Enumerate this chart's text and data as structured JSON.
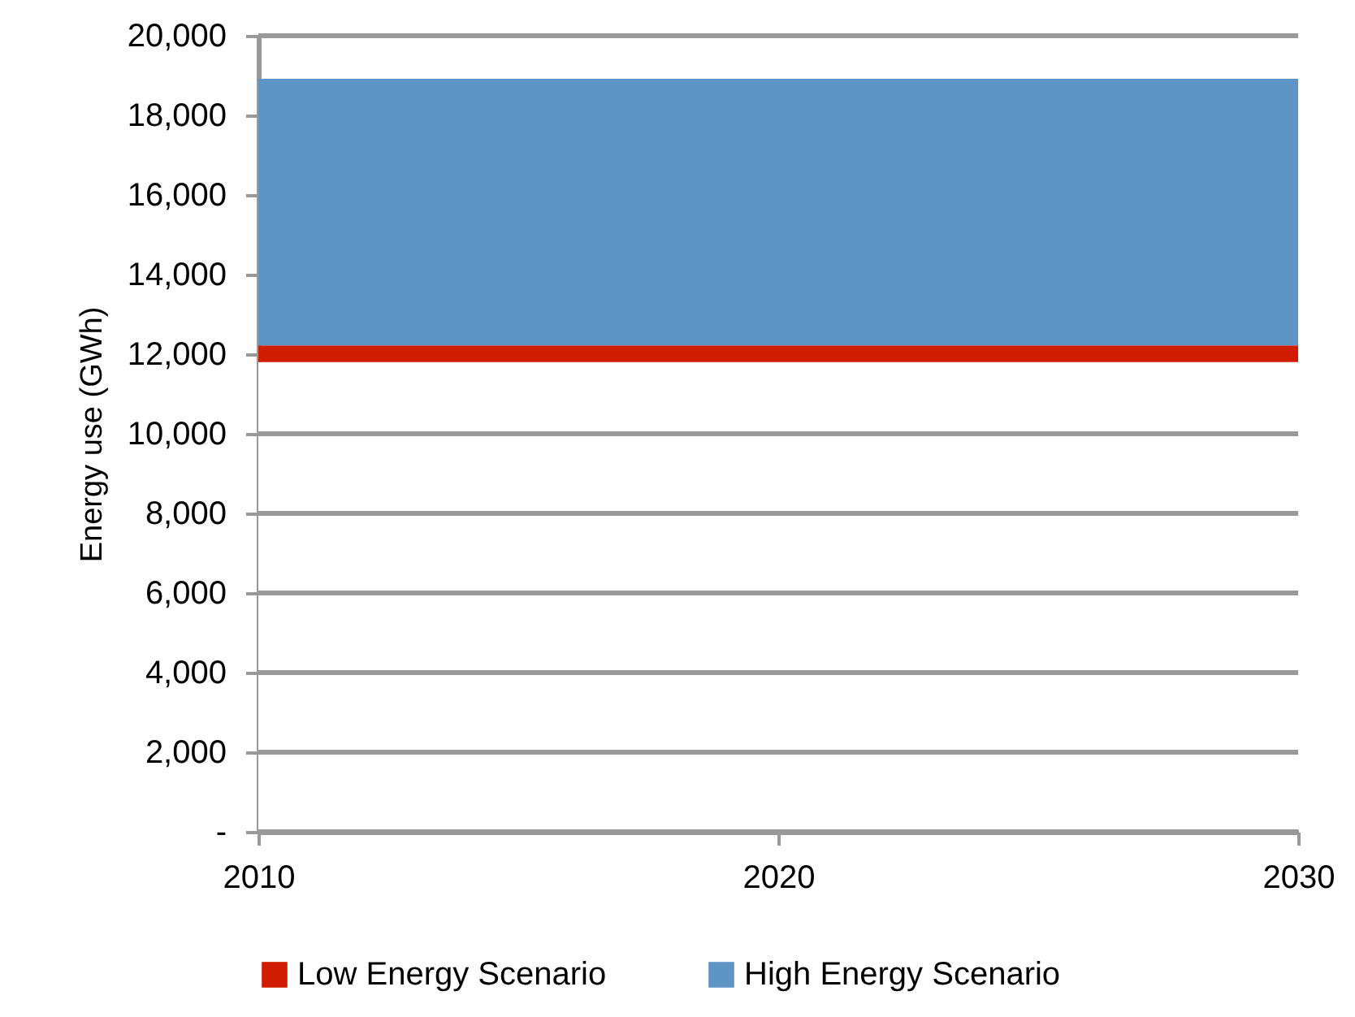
{
  "chart_data": {
    "type": "area",
    "stacked": true,
    "ylabel": "Energy use (GWh)",
    "x": [
      2010,
      2030
    ],
    "xlim": [
      2010,
      2030
    ],
    "xticks": [
      2010,
      2020,
      2030
    ],
    "ylim": [
      0,
      20000
    ],
    "yticks": [
      {
        "value": 0,
        "label": "-"
      },
      {
        "value": 2000,
        "label": "2,000"
      },
      {
        "value": 4000,
        "label": "4,000"
      },
      {
        "value": 6000,
        "label": "6,000"
      },
      {
        "value": 8000,
        "label": "8,000"
      },
      {
        "value": 10000,
        "label": "10,000"
      },
      {
        "value": 12000,
        "label": "12,000"
      },
      {
        "value": 14000,
        "label": "14,000"
      },
      {
        "value": 16000,
        "label": "16,000"
      },
      {
        "value": 18000,
        "label": "18,000"
      },
      {
        "value": 20000,
        "label": "20,000"
      }
    ],
    "series": [
      {
        "color": "#ffffff",
        "values": [
          11800,
          11800
        ]
      },
      {
        "name": "Low Energy Scenario",
        "color": "#d01c00",
        "values": [
          420,
          420
        ]
      },
      {
        "name": "High Energy Scenario",
        "color": "#5f95c6",
        "values": [
          6700,
          6700
        ]
      }
    ],
    "grid": "y",
    "legend": "bottom"
  }
}
